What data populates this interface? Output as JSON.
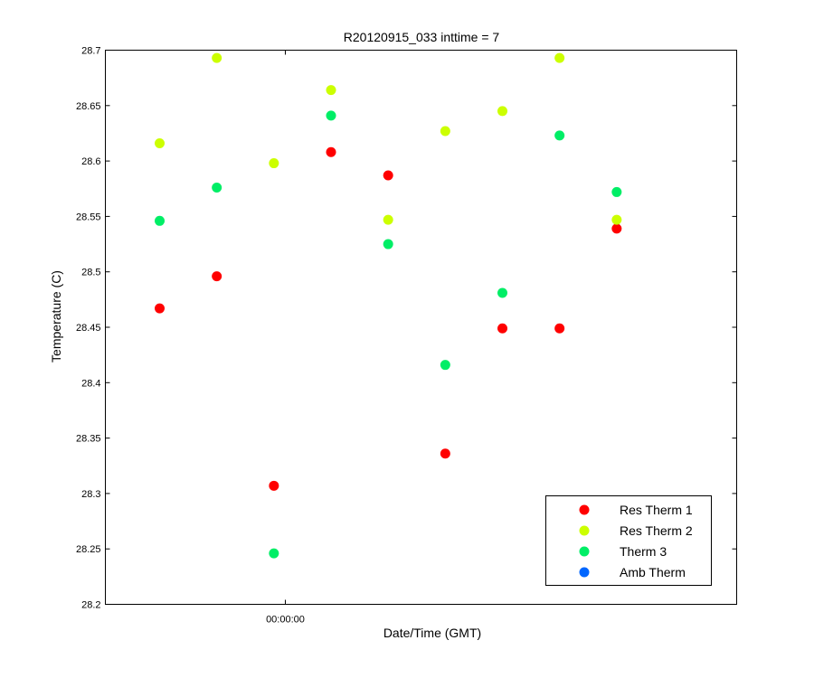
{
  "chart_data": {
    "type": "scatter",
    "title": "R20120915_033 inttime = 7",
    "xlabel": "Date/Time (GMT)",
    "ylabel": "Temperature (C)",
    "ylim": [
      28.2,
      28.7
    ],
    "y_ticks": [
      "28.2",
      "28.25",
      "28.3",
      "28.35",
      "28.4",
      "28.45",
      "28.5",
      "28.55",
      "28.6",
      "28.65",
      "28.7"
    ],
    "x_ticks": [
      "00:00:00"
    ],
    "x_tick_index": 2.2,
    "xlim_index": [
      -0.95,
      10.1
    ],
    "grid": false,
    "legend_position": "bottom-right",
    "series": [
      {
        "name": "Res Therm 1",
        "color": "#ff0000",
        "x": [
          0,
          1,
          2,
          3,
          4,
          5,
          6,
          7,
          8
        ],
        "y": [
          28.467,
          28.496,
          28.307,
          28.608,
          28.587,
          28.336,
          28.449,
          28.449,
          28.539
        ]
      },
      {
        "name": "Res Therm 2",
        "color": "#ccff00",
        "x": [
          0,
          1,
          2,
          3,
          4,
          5,
          6,
          7,
          8
        ],
        "y": [
          28.616,
          28.693,
          28.598,
          28.664,
          28.547,
          28.627,
          28.645,
          28.693,
          28.547
        ]
      },
      {
        "name": "Therm 3",
        "color": "#00ee66",
        "x": [
          0,
          1,
          2,
          3,
          4,
          5,
          6,
          7,
          8
        ],
        "y": [
          28.546,
          28.576,
          28.246,
          28.641,
          28.525,
          28.416,
          28.481,
          28.623,
          28.572
        ]
      },
      {
        "name": "Amb Therm",
        "color": "#0066ff",
        "x": [],
        "y": []
      }
    ]
  }
}
